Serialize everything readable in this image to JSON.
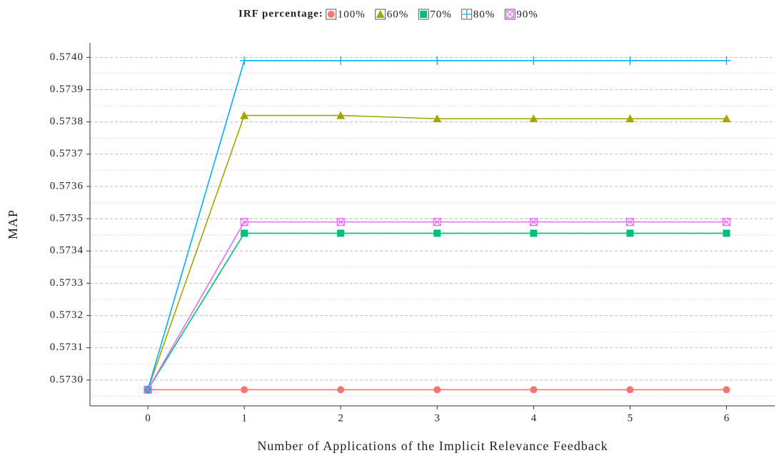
{
  "chart_data": {
    "type": "line",
    "legend_title": "IRF percentage:",
    "x_label": "Number of Applications of the Implicit Relevance Feedback",
    "y_label": "MAP",
    "x": [
      0,
      1,
      2,
      3,
      4,
      5,
      6
    ],
    "series": [
      {
        "name": "100%",
        "color": "#F8766D",
        "marker": "circle",
        "values": [
          0.57297,
          0.57297,
          0.57297,
          0.57297,
          0.57297,
          0.57297,
          0.57297
        ]
      },
      {
        "name": "60%",
        "color": "#A3A500",
        "marker": "triangle",
        "values": [
          0.57297,
          0.57382,
          0.57382,
          0.57381,
          0.57381,
          0.57381,
          0.57381
        ]
      },
      {
        "name": "70%",
        "color": "#00BF7D",
        "marker": "square",
        "values": [
          0.57297,
          0.573455,
          0.573455,
          0.573455,
          0.573455,
          0.573455,
          0.573455
        ]
      },
      {
        "name": "80%",
        "color": "#00B0F6",
        "marker": "plus",
        "values": [
          0.57297,
          0.57399,
          0.57399,
          0.57399,
          0.57399,
          0.57399,
          0.57399
        ]
      },
      {
        "name": "90%",
        "color": "#E76BF3",
        "marker": "boxx",
        "values": [
          0.57297,
          0.57349,
          0.57349,
          0.57349,
          0.57349,
          0.57349,
          0.57349
        ]
      }
    ],
    "xlim": [
      -0.6,
      6.5
    ],
    "ylim": [
      0.57292,
      0.574045
    ],
    "xticks": [
      0,
      1,
      2,
      3,
      4,
      5,
      6
    ],
    "yticks": [
      {
        "value": 0.573,
        "label": "0.5730"
      },
      {
        "value": 0.5731,
        "label": "0.5731"
      },
      {
        "value": 0.5732,
        "label": "0.5732"
      },
      {
        "value": 0.5733,
        "label": "0.5733"
      },
      {
        "value": 0.5734,
        "label": "0.5734"
      },
      {
        "value": 0.5735,
        "label": "0.5735"
      },
      {
        "value": 0.5736,
        "label": "0.5736"
      },
      {
        "value": 0.5737,
        "label": "0.5737"
      },
      {
        "value": 0.5738,
        "label": "0.5738"
      },
      {
        "value": 0.5739,
        "label": "0.5739"
      },
      {
        "value": 0.574,
        "label": "0.5740"
      }
    ],
    "grid": true,
    "minor_grid": true,
    "legend_position": "top"
  }
}
